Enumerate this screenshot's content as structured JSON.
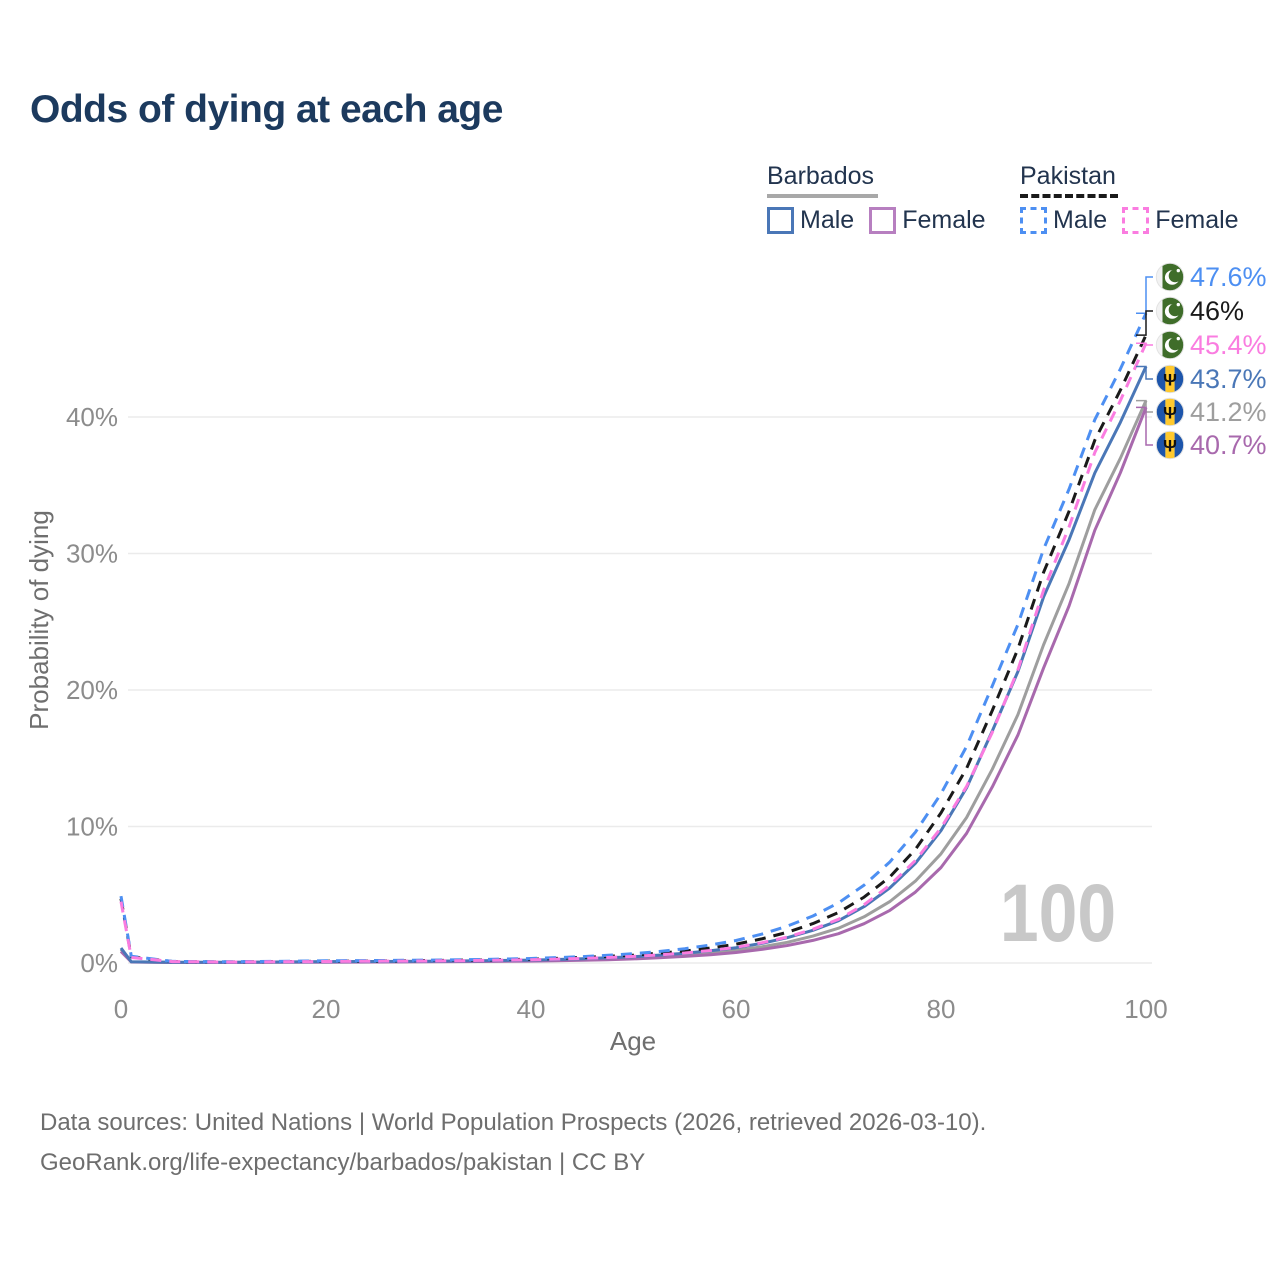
{
  "title": {
    "text": "Odds of dying at each age"
  },
  "legend": {
    "groups": [
      {
        "label": "Barbados",
        "dashed": false,
        "underline_color": "#a8a8a8",
        "items": [
          {
            "label": "Male",
            "color": "#4a77b7"
          },
          {
            "label": "Female",
            "color": "#b77fc0"
          }
        ]
      },
      {
        "label": "Pakistan",
        "dashed": true,
        "underline_color": "#1a1a1a",
        "items": [
          {
            "label": "Male",
            "color": "#4d8ff2"
          },
          {
            "label": "Female",
            "color": "#fa7ce0"
          }
        ]
      }
    ]
  },
  "watermark": "100",
  "footer": {
    "line1": "Data sources: United Nations | World Population Prospects (2026, retrieved 2026-03-10).",
    "line2": "GeoRank.org/life-expectancy/barbados/pakistan | CC BY"
  },
  "chart_data": {
    "type": "line",
    "title": "Odds of dying at each age",
    "xlabel": "Age",
    "ylabel": "Probability of dying",
    "xlim": [
      0,
      100
    ],
    "ylim": [
      0,
      48
    ],
    "x_ticks": [
      0,
      20,
      40,
      60,
      80,
      100
    ],
    "y_ticks_pct": [
      0,
      10,
      20,
      30,
      40
    ],
    "y_tick_labels": [
      "0%",
      "10%",
      "20%",
      "30%",
      "40%"
    ],
    "grid": true,
    "legend_position": "top-right",
    "ages": [
      0,
      1,
      5,
      10,
      15,
      20,
      25,
      30,
      35,
      40,
      45,
      50,
      55,
      60,
      65,
      70,
      75,
      80,
      85,
      90,
      95,
      100
    ],
    "series": [
      {
        "id": "pakistan-male",
        "country": "Pakistan",
        "sex": "Male",
        "color": "#4d8ff2",
        "dashed": true,
        "final_label": "47.6%",
        "final_value_pct": 47.6,
        "values_pct": [
          4.9,
          0.5,
          0.12,
          0.09,
          0.12,
          0.16,
          0.18,
          0.21,
          0.26,
          0.33,
          0.47,
          0.68,
          1.05,
          1.65,
          2.7,
          4.4,
          7.4,
          12.4,
          20.3,
          30.3,
          39.8,
          47.6
        ]
      },
      {
        "id": "pakistan-total",
        "country": "Pakistan",
        "sex": "Both",
        "color": "#1a1a1a",
        "dashed": true,
        "final_label": "46%",
        "final_value_pct": 46.0,
        "values_pct": [
          4.7,
          0.45,
          0.11,
          0.08,
          0.1,
          0.13,
          0.15,
          0.18,
          0.22,
          0.28,
          0.4,
          0.58,
          0.88,
          1.38,
          2.25,
          3.7,
          6.3,
          11.0,
          18.5,
          28.6,
          38.3,
          46.0
        ]
      },
      {
        "id": "pakistan-female",
        "country": "Pakistan",
        "sex": "Female",
        "color": "#fa7ce0",
        "dashed": true,
        "final_label": "45.4%",
        "final_value_pct": 45.4,
        "values_pct": [
          4.5,
          0.4,
          0.1,
          0.07,
          0.09,
          0.11,
          0.13,
          0.15,
          0.19,
          0.24,
          0.34,
          0.48,
          0.73,
          1.15,
          1.9,
          3.2,
          5.7,
          9.9,
          16.9,
          27.3,
          37.4,
          45.4
        ]
      },
      {
        "id": "barbados-male",
        "country": "Barbados",
        "sex": "Male",
        "color": "#4a77b7",
        "dashed": false,
        "final_label": "43.7%",
        "final_value_pct": 43.7,
        "values_pct": [
          1.1,
          0.09,
          0.05,
          0.05,
          0.07,
          0.1,
          0.11,
          0.13,
          0.16,
          0.21,
          0.31,
          0.46,
          0.72,
          1.12,
          1.85,
          3.1,
          5.5,
          9.7,
          17.0,
          26.8,
          35.9,
          43.7
        ]
      },
      {
        "id": "barbados-total",
        "country": "Barbados",
        "sex": "Both",
        "color": "#9e9e9e",
        "dashed": false,
        "final_label": "41.2%",
        "final_value_pct": 41.2,
        "values_pct": [
          1.0,
          0.08,
          0.04,
          0.04,
          0.06,
          0.08,
          0.09,
          0.11,
          0.13,
          0.17,
          0.25,
          0.37,
          0.58,
          0.92,
          1.52,
          2.55,
          4.5,
          8.0,
          14.2,
          23.3,
          33.2,
          41.2
        ]
      },
      {
        "id": "barbados-female",
        "country": "Barbados",
        "sex": "Female",
        "color": "#a869ad",
        "dashed": false,
        "final_label": "40.7%",
        "final_value_pct": 40.7,
        "values_pct": [
          0.85,
          0.07,
          0.035,
          0.035,
          0.05,
          0.06,
          0.07,
          0.09,
          0.11,
          0.14,
          0.2,
          0.3,
          0.48,
          0.77,
          1.28,
          2.15,
          3.85,
          7.0,
          12.9,
          21.6,
          31.7,
          40.7
        ]
      }
    ],
    "colors": {
      "grid": "#ebebeb",
      "tick_text": "#8c8c8c",
      "axis_title": "#6f6f6f",
      "watermark": "#c8c8c8",
      "pakistan_flag_green": "#3f6d2a",
      "barbados_flag_blue": "#1d55ab",
      "barbados_flag_yellow": "#ffc92e"
    }
  }
}
